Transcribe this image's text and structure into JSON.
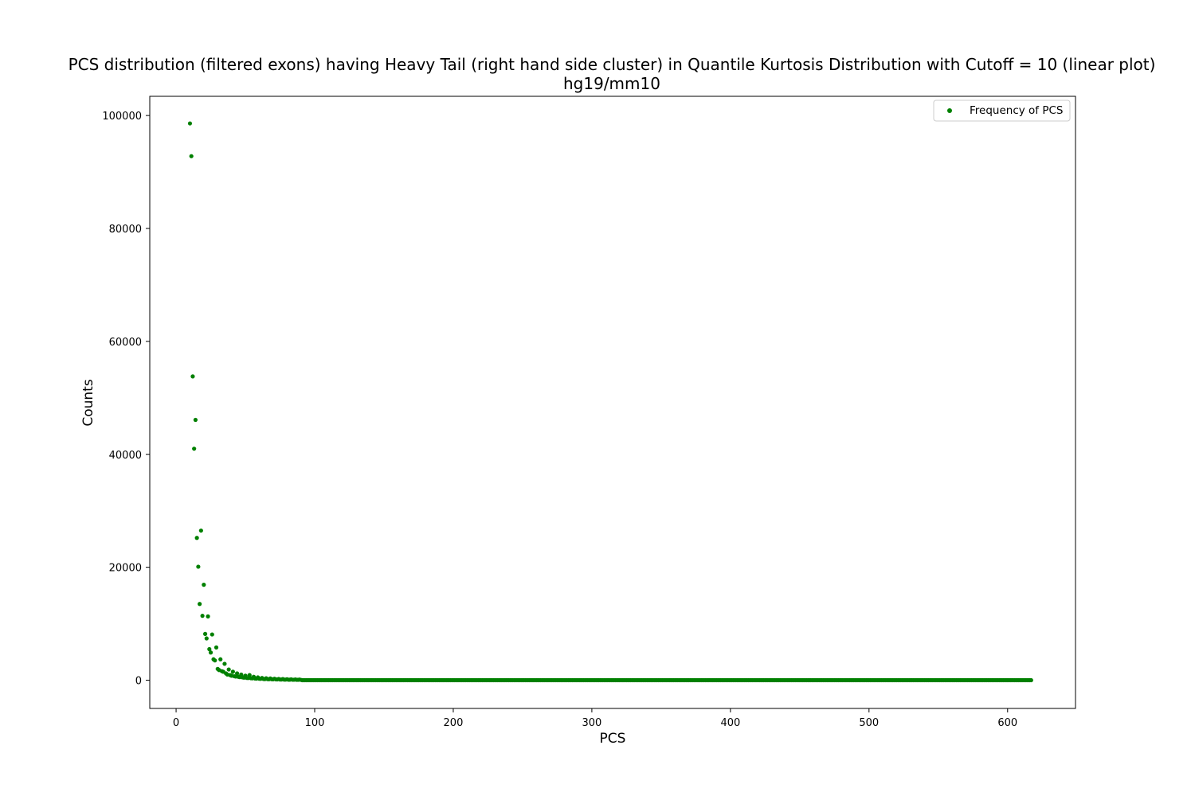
{
  "chart_data": {
    "type": "scatter",
    "title": "PCS distribution (filtered exons) having Heavy Tail (right hand side cluster) in Quantile Kurtosis Distribution with Cutoff = 10 (linear plot)",
    "subtitle": "hg19/mm10",
    "xlabel": "PCS",
    "ylabel": "Counts",
    "xlim": [
      -19,
      649
    ],
    "ylim": [
      -5000,
      103400
    ],
    "xticks": [
      0,
      100,
      200,
      300,
      400,
      500,
      600
    ],
    "yticks": [
      0,
      20000,
      40000,
      60000,
      80000,
      100000
    ],
    "grid": false,
    "legend_position": "top-right",
    "color": "#008000",
    "series": [
      {
        "name": "Frequency of PCS",
        "head_points": [
          [
            10,
            98600
          ],
          [
            11,
            92800
          ],
          [
            12,
            53800
          ],
          [
            13,
            41000
          ],
          [
            14,
            46100
          ],
          [
            15,
            25200
          ],
          [
            16,
            20100
          ],
          [
            17,
            13500
          ],
          [
            18,
            26500
          ],
          [
            19,
            11400
          ],
          [
            20,
            16900
          ],
          [
            21,
            8200
          ],
          [
            22,
            7400
          ],
          [
            23,
            11300
          ],
          [
            24,
            5500
          ],
          [
            25,
            4900
          ],
          [
            26,
            8100
          ],
          [
            27,
            3700
          ],
          [
            28,
            3500
          ],
          [
            29,
            5800
          ],
          [
            30,
            2000
          ],
          [
            31,
            1800
          ],
          [
            32,
            3700
          ],
          [
            33,
            1600
          ],
          [
            34,
            1500
          ],
          [
            35,
            2900
          ],
          [
            36,
            1200
          ],
          [
            37,
            1000
          ],
          [
            38,
            1900
          ],
          [
            39,
            900
          ],
          [
            40,
            800
          ],
          [
            41,
            1500
          ],
          [
            42,
            700
          ],
          [
            43,
            650
          ],
          [
            44,
            1200
          ],
          [
            45,
            600
          ],
          [
            46,
            550
          ],
          [
            47,
            1000
          ],
          [
            48,
            500
          ],
          [
            49,
            450
          ],
          [
            50,
            800
          ],
          [
            51,
            400
          ],
          [
            52,
            380
          ],
          [
            53,
            900
          ],
          [
            54,
            350
          ],
          [
            55,
            330
          ],
          [
            56,
            600
          ],
          [
            57,
            300
          ],
          [
            58,
            280
          ],
          [
            59,
            500
          ],
          [
            60,
            260
          ],
          [
            61,
            240
          ],
          [
            62,
            400
          ],
          [
            63,
            220
          ],
          [
            64,
            200
          ],
          [
            65,
            350
          ],
          [
            66,
            190
          ],
          [
            67,
            180
          ],
          [
            68,
            300
          ],
          [
            69,
            170
          ],
          [
            70,
            160
          ],
          [
            71,
            260
          ],
          [
            72,
            150
          ],
          [
            73,
            140
          ],
          [
            74,
            220
          ],
          [
            75,
            130
          ],
          [
            76,
            120
          ],
          [
            77,
            200
          ],
          [
            78,
            110
          ],
          [
            79,
            100
          ],
          [
            80,
            170
          ],
          [
            81,
            95
          ],
          [
            82,
            90
          ],
          [
            83,
            150
          ],
          [
            84,
            85
          ],
          [
            85,
            80
          ],
          [
            86,
            130
          ],
          [
            87,
            75
          ],
          [
            88,
            70
          ],
          [
            89,
            110
          ],
          [
            90,
            65
          ]
        ],
        "tail": {
          "x_start": 91,
          "x_end": 617,
          "step": 1,
          "value": 0
        }
      }
    ]
  }
}
